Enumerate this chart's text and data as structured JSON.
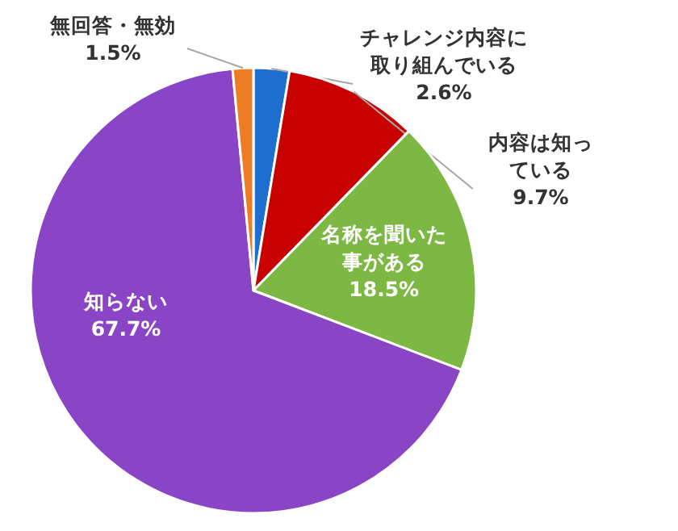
{
  "chart_data": {
    "type": "pie",
    "categories": [
      "チャレンジ内容に取り組んでいる",
      "内容は知っている",
      "名称を聞いた事がある",
      "知らない",
      "無回答・無効"
    ],
    "values": [
      2.6,
      9.7,
      18.5,
      67.7,
      1.5
    ],
    "colors": [
      "#1f6fd0",
      "#c80000",
      "#7cb843",
      "#8a44c6",
      "#ed7d22"
    ],
    "value_labels": [
      "2.6%",
      "9.7%",
      "18.5%",
      "67.7%",
      "1.5%"
    ]
  }
}
